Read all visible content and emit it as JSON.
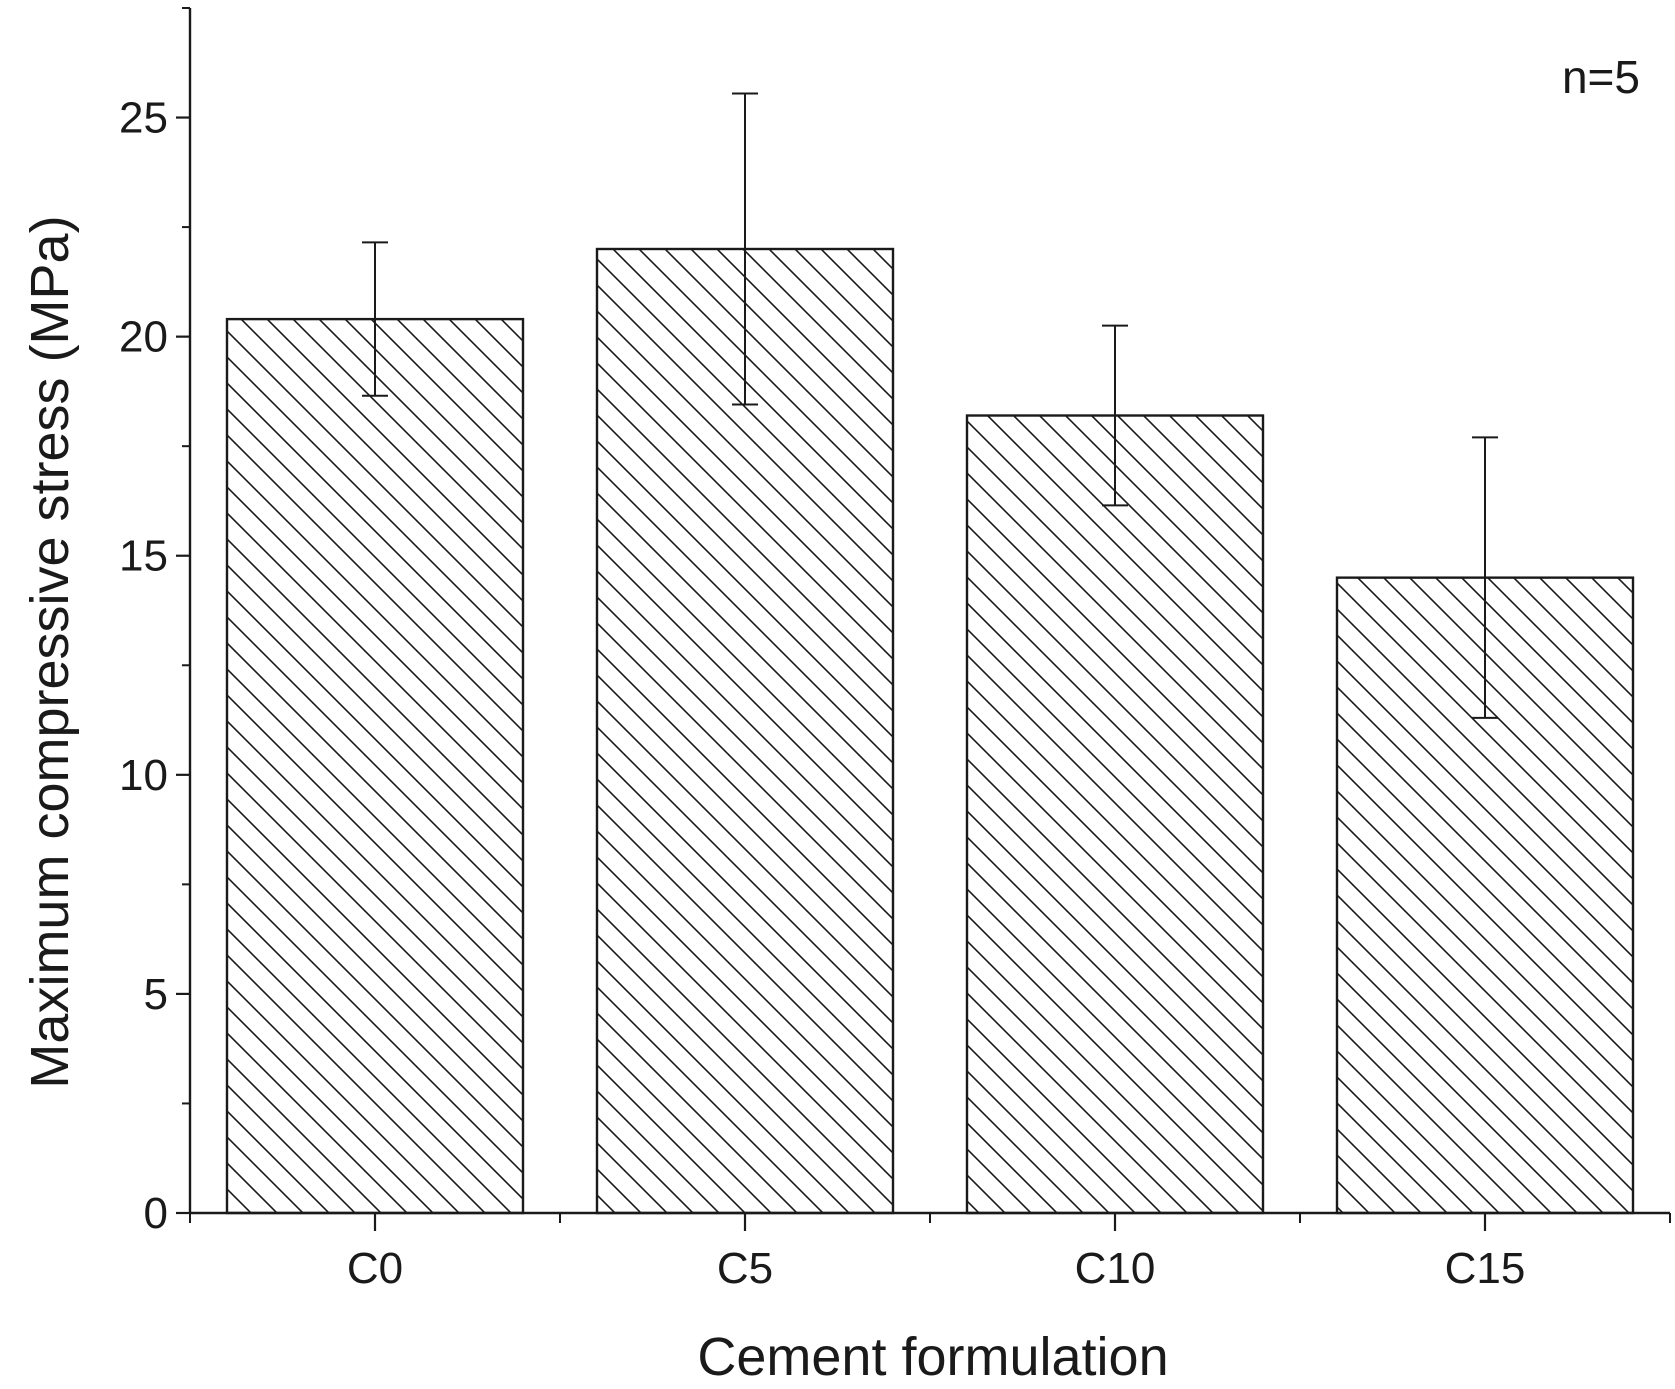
{
  "chart_data": {
    "type": "bar",
    "categories": [
      "C0",
      "C5",
      "C10",
      "C15"
    ],
    "values": [
      20.4,
      22.0,
      18.2,
      14.5
    ],
    "errors": [
      1.75,
      3.55,
      2.05,
      3.2
    ],
    "xlabel": "Cement formulation",
    "ylabel": "Maximum compressive stress (MPa)",
    "annotation": "n=5",
    "ylim": [
      0,
      27.5
    ],
    "yticks": [
      0,
      5,
      10,
      15,
      20,
      25
    ],
    "ytick_labels": [
      "0",
      "5",
      "10",
      "15",
      "20",
      "25"
    ],
    "grid": false,
    "bar_fill": "hatched",
    "bar_color": "#ffffff",
    "line_color": "#1a1a1a"
  }
}
